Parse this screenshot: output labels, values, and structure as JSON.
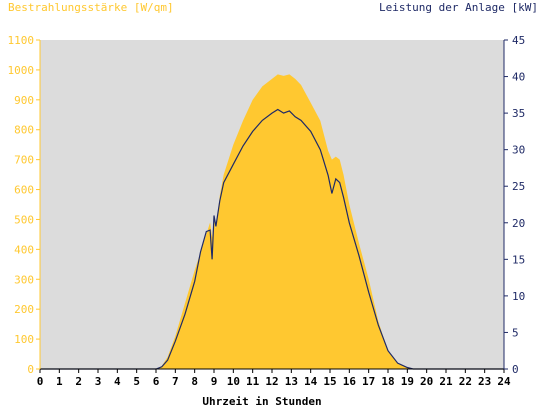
{
  "chart_data": {
    "type": "area",
    "left_axis_label": "Bestrahlungsstärke [W/qm]",
    "right_axis_label": "Leistung der Anlage [kW]",
    "xlabel": "Uhrzeit in Stunden",
    "xlim": [
      0,
      24
    ],
    "x_ticks": [
      "0",
      "1",
      "2",
      "3",
      "4",
      "5",
      "6",
      "7",
      "8",
      "9",
      "10",
      "11",
      "12",
      "13",
      "14",
      "15",
      "16",
      "17",
      "18",
      "19",
      "20",
      "21",
      "22",
      "23",
      "24"
    ],
    "left_ylim": [
      0,
      1100
    ],
    "left_ticks": [
      "0",
      "100",
      "200",
      "300",
      "400",
      "500",
      "600",
      "700",
      "800",
      "900",
      "1000",
      "1100"
    ],
    "right_ylim": [
      0,
      45
    ],
    "right_ticks": [
      "0",
      "5",
      "10",
      "15",
      "20",
      "25",
      "30",
      "35",
      "40",
      "45"
    ],
    "colors": {
      "irradiance": "#FFC830",
      "power": "#1F2A66",
      "plot_bg": "#DCDCDC",
      "left_axis": "#FFC830",
      "right_axis": "#1F2A66"
    },
    "series": [
      {
        "axis": "left",
        "style": "area",
        "x": [
          0,
          6.0,
          6.3,
          6.6,
          7.0,
          7.5,
          8.0,
          8.3,
          8.6,
          8.8,
          8.9,
          9.0,
          9.1,
          9.3,
          9.5,
          10.0,
          10.5,
          11.0,
          11.5,
          12.0,
          12.3,
          12.6,
          12.9,
          13.2,
          13.5,
          14.0,
          14.5,
          14.9,
          15.1,
          15.3,
          15.5,
          15.7,
          16.0,
          16.5,
          17.0,
          17.5,
          18.0,
          18.5,
          19.0,
          19.3,
          24
        ],
        "values": [
          0,
          0,
          10,
          40,
          110,
          220,
          330,
          390,
          450,
          490,
          440,
          500,
          470,
          580,
          650,
          750,
          830,
          900,
          945,
          970,
          985,
          980,
          985,
          970,
          950,
          890,
          830,
          730,
          700,
          710,
          700,
          650,
          550,
          420,
          300,
          160,
          60,
          20,
          5,
          0,
          0
        ]
      },
      {
        "axis": "right",
        "style": "line",
        "x": [
          0,
          6.0,
          6.3,
          6.6,
          7.0,
          7.5,
          8.0,
          8.3,
          8.6,
          8.8,
          8.9,
          9.0,
          9.1,
          9.3,
          9.5,
          10.0,
          10.5,
          11.0,
          11.5,
          12.0,
          12.3,
          12.6,
          12.9,
          13.2,
          13.5,
          14.0,
          14.5,
          14.9,
          15.1,
          15.3,
          15.5,
          15.7,
          16.0,
          16.5,
          17.0,
          17.5,
          18.0,
          18.5,
          19.0,
          19.3,
          24
        ],
        "values": [
          0,
          0,
          0.3,
          1.2,
          3.8,
          7.5,
          12.0,
          16.0,
          18.8,
          19.0,
          15.0,
          21.0,
          19.5,
          23.0,
          25.5,
          28.0,
          30.5,
          32.5,
          34.0,
          35.0,
          35.5,
          35.0,
          35.3,
          34.5,
          34.0,
          32.5,
          30.0,
          26.5,
          24.0,
          26.0,
          25.5,
          23.5,
          20.0,
          15.5,
          10.5,
          6.0,
          2.5,
          0.8,
          0.2,
          0,
          0
        ]
      }
    ]
  }
}
